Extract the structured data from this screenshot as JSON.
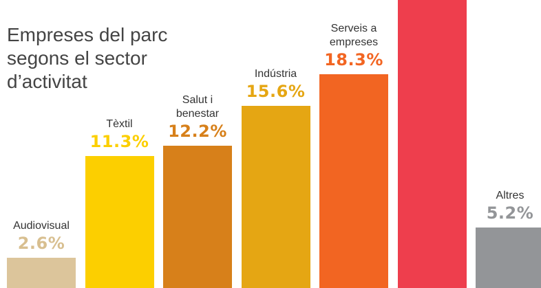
{
  "chart_data": {
    "type": "bar",
    "title": "Empreses del parc segons el sector d’activitat",
    "categories": [
      "Audiovisual",
      "Tèxtil",
      "Salut i benestar",
      "Indústria",
      "Serveis a empreses",
      null,
      "Altres"
    ],
    "values": [
      2.6,
      11.3,
      12.2,
      15.6,
      18.3,
      34.8,
      5.2
    ],
    "value_labels": [
      "2.6%",
      "11.3%",
      "12.2%",
      "15.6%",
      "18.3%",
      null,
      "5.2%"
    ],
    "colors": [
      "#dcc59b",
      "#fccf00",
      "#d7801a",
      "#e5a613",
      "#f26522",
      "#ee3e4d",
      "#939598"
    ]
  }
}
